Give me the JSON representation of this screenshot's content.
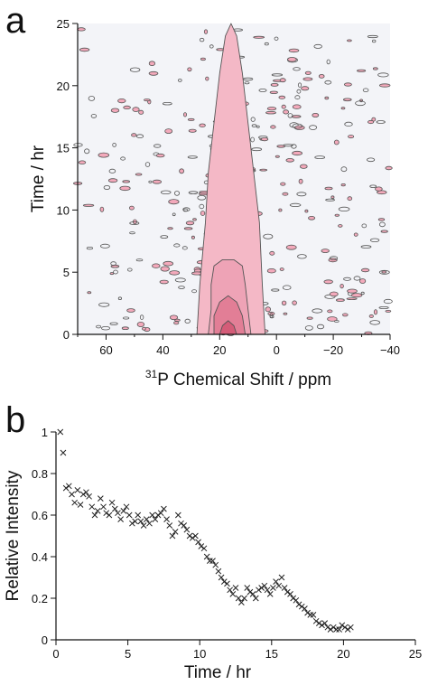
{
  "colors": {
    "contour_low": "#f4b8c6",
    "contour_mid": "#eea3b6",
    "contour_high": "#e27e96",
    "contour_core": "#d45c78",
    "contour_edge": "#555555",
    "noise_fill": "#f3a9bb",
    "background_field": "#f3f4f8",
    "marker": "#222222"
  },
  "chart_data": [
    {
      "panel": "a",
      "type": "heatmap",
      "xlabel": "Chemical Shift / ppm",
      "xlabel_superscript": "31",
      "xlabel_element": "P",
      "ylabel": "Time / hr",
      "xlim": [
        70,
        -40
      ],
      "ylim": [
        0,
        25
      ],
      "x_reversed": true,
      "x_ticks": [
        60,
        40,
        20,
        0,
        -20,
        -40
      ],
      "x_tick_labels": [
        "60",
        "40",
        "20",
        "0",
        "−20",
        "−40"
      ],
      "y_ticks": [
        0,
        5,
        10,
        15,
        20,
        25
      ],
      "y_tick_labels": [
        "0",
        "5",
        "10",
        "15",
        "20",
        "25"
      ],
      "peak_center_ppm": 17,
      "contour_regions": [
        {
          "level": "low",
          "points": [
            [
              28,
              0
            ],
            [
              27,
              4
            ],
            [
              25,
              9
            ],
            [
              24,
              13
            ],
            [
              22,
              17
            ],
            [
              20,
              21
            ],
            [
              18,
              24
            ],
            [
              16,
              25
            ],
            [
              14,
              24
            ],
            [
              12,
              21
            ],
            [
              10,
              17
            ],
            [
              8,
              13
            ],
            [
              6,
              9
            ],
            [
              5,
              4
            ],
            [
              4,
              0
            ]
          ]
        },
        {
          "level": "mid",
          "points": [
            [
              24,
              0
            ],
            [
              23,
              2
            ],
            [
              23,
              4
            ],
            [
              22,
              5.5
            ],
            [
              19,
              6
            ],
            [
              15,
              6
            ],
            [
              12,
              5.5
            ],
            [
              11,
              4
            ],
            [
              10,
              2
            ],
            [
              9,
              0
            ]
          ]
        },
        {
          "level": "high",
          "points": [
            [
              22,
              0
            ],
            [
              22,
              1.5
            ],
            [
              20,
              2.6
            ],
            [
              17,
              3.1
            ],
            [
              14,
              2.6
            ],
            [
              12,
              1.5
            ],
            [
              11,
              0
            ]
          ]
        },
        {
          "level": "core",
          "points": [
            [
              20,
              0
            ],
            [
              19,
              0.7
            ],
            [
              17,
              1.1
            ],
            [
              15,
              0.7
            ],
            [
              14,
              0
            ]
          ]
        }
      ]
    },
    {
      "panel": "b",
      "type": "scatter",
      "marker": "x",
      "xlabel": "Time / hr",
      "ylabel": "Relative Intensity",
      "xlim": [
        0,
        25
      ],
      "ylim": [
        0,
        1
      ],
      "x_ticks": [
        0,
        5,
        10,
        15,
        20,
        25
      ],
      "x_tick_labels": [
        "0",
        "5",
        "10",
        "15",
        "20",
        "25"
      ],
      "y_ticks": [
        0,
        0.2,
        0.4,
        0.6,
        0.8,
        1
      ],
      "y_tick_labels": [
        "0",
        "0.2",
        "0.4",
        "0.6",
        "0.8",
        "1"
      ],
      "points": [
        [
          0.3,
          1.0
        ],
        [
          0.5,
          0.9
        ],
        [
          0.7,
          0.73
        ],
        [
          0.9,
          0.74
        ],
        [
          1.1,
          0.7
        ],
        [
          1.3,
          0.66
        ],
        [
          1.5,
          0.72
        ],
        [
          1.7,
          0.65
        ],
        [
          1.9,
          0.7
        ],
        [
          2.1,
          0.71
        ],
        [
          2.3,
          0.69
        ],
        [
          2.5,
          0.64
        ],
        [
          2.7,
          0.6
        ],
        [
          2.9,
          0.62
        ],
        [
          3.1,
          0.68
        ],
        [
          3.3,
          0.64
        ],
        [
          3.5,
          0.61
        ],
        [
          3.7,
          0.6
        ],
        [
          3.9,
          0.66
        ],
        [
          4.1,
          0.63
        ],
        [
          4.3,
          0.61
        ],
        [
          4.5,
          0.58
        ],
        [
          4.7,
          0.62
        ],
        [
          4.9,
          0.64
        ],
        [
          5.1,
          0.6
        ],
        [
          5.3,
          0.56
        ],
        [
          5.5,
          0.57
        ],
        [
          5.7,
          0.6
        ],
        [
          5.9,
          0.57
        ],
        [
          6.1,
          0.55
        ],
        [
          6.3,
          0.58
        ],
        [
          6.5,
          0.56
        ],
        [
          6.7,
          0.6
        ],
        [
          6.9,
          0.58
        ],
        [
          7.1,
          0.6
        ],
        [
          7.3,
          0.61
        ],
        [
          7.5,
          0.63
        ],
        [
          7.7,
          0.58
        ],
        [
          7.9,
          0.55
        ],
        [
          8.1,
          0.5
        ],
        [
          8.3,
          0.52
        ],
        [
          8.5,
          0.6
        ],
        [
          8.7,
          0.56
        ],
        [
          8.9,
          0.55
        ],
        [
          9.1,
          0.53
        ],
        [
          9.3,
          0.5
        ],
        [
          9.5,
          0.49
        ],
        [
          9.7,
          0.5
        ],
        [
          9.9,
          0.47
        ],
        [
          10.1,
          0.45
        ],
        [
          10.3,
          0.44
        ],
        [
          10.5,
          0.4
        ],
        [
          10.7,
          0.38
        ],
        [
          10.9,
          0.38
        ],
        [
          11.1,
          0.36
        ],
        [
          11.3,
          0.33
        ],
        [
          11.5,
          0.3
        ],
        [
          11.7,
          0.28
        ],
        [
          11.9,
          0.27
        ],
        [
          12.1,
          0.24
        ],
        [
          12.3,
          0.22
        ],
        [
          12.5,
          0.25
        ],
        [
          12.7,
          0.2
        ],
        [
          12.9,
          0.18
        ],
        [
          13.1,
          0.2
        ],
        [
          13.3,
          0.25
        ],
        [
          13.5,
          0.23
        ],
        [
          13.7,
          0.22
        ],
        [
          13.9,
          0.2
        ],
        [
          14.1,
          0.24
        ],
        [
          14.3,
          0.25
        ],
        [
          14.5,
          0.26
        ],
        [
          14.7,
          0.24
        ],
        [
          14.9,
          0.22
        ],
        [
          15.1,
          0.25
        ],
        [
          15.3,
          0.28
        ],
        [
          15.5,
          0.26
        ],
        [
          15.7,
          0.3
        ],
        [
          15.9,
          0.25
        ],
        [
          16.1,
          0.23
        ],
        [
          16.3,
          0.22
        ],
        [
          16.5,
          0.2
        ],
        [
          16.7,
          0.19
        ],
        [
          16.9,
          0.17
        ],
        [
          17.1,
          0.16
        ],
        [
          17.3,
          0.15
        ],
        [
          17.5,
          0.13
        ],
        [
          17.7,
          0.12
        ],
        [
          17.9,
          0.12
        ],
        [
          18.1,
          0.09
        ],
        [
          18.3,
          0.08
        ],
        [
          18.5,
          0.07
        ],
        [
          18.7,
          0.08
        ],
        [
          18.9,
          0.06
        ],
        [
          19.1,
          0.05
        ],
        [
          19.3,
          0.06
        ],
        [
          19.5,
          0.05
        ],
        [
          19.7,
          0.05
        ],
        [
          19.9,
          0.07
        ],
        [
          20.1,
          0.06
        ],
        [
          20.3,
          0.05
        ],
        [
          20.5,
          0.06
        ]
      ]
    }
  ],
  "labels": {
    "panel_a": "a",
    "panel_b": "b"
  }
}
